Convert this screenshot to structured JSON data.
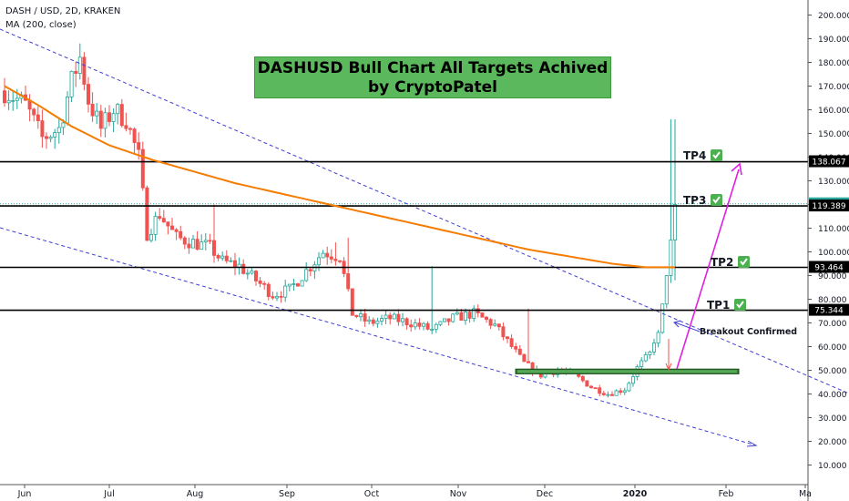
{
  "header": {
    "symbol": "DASH / USD, 2D, KRAKEN",
    "indicator": "MA (200, close)"
  },
  "banner": {
    "line1": "DASHUSD Bull Chart All Targets Achived",
    "line2": "by CryptoPatel"
  },
  "colors": {
    "up": "#26a69a",
    "down": "#ef5350",
    "ma": "#f57c00",
    "channel": "#3f3fd0",
    "arrow": "#e020e0",
    "support": "#2e7d32",
    "check": "#4caf50"
  },
  "chart_data": {
    "type": "candlestick",
    "y_axis": {
      "ticks": [
        "200.000",
        "190.000",
        "180.000",
        "170.000",
        "160.000",
        "150.000",
        "140.000",
        "130.000",
        "120.000",
        "110.000",
        "100.000",
        "90.000",
        "80.000",
        "70.000",
        "60.000",
        "50.000",
        "40.000",
        "30.000",
        "20.000",
        "10.000"
      ],
      "ylim": [
        4,
        206
      ]
    },
    "x_axis": {
      "ticks": [
        "Jun",
        "Jul",
        "Aug",
        "Sep",
        "Oct",
        "Nov",
        "Dec",
        "2020",
        "Feb",
        "Ma"
      ]
    },
    "price_badges": [
      {
        "value": 138.067,
        "label": "138.067",
        "color": "#000000"
      },
      {
        "value": 120.3,
        "label": "120.300",
        "color": "#26a69a"
      },
      {
        "value": 119.389,
        "label": "119.389",
        "color": "#000000"
      },
      {
        "value": 93.464,
        "label": "93.464",
        "color": "#000000"
      },
      {
        "value": 75.344,
        "label": "75.344",
        "color": "#000000"
      }
    ],
    "targets": [
      {
        "label": "TP4 ✅",
        "price": 138.067
      },
      {
        "label": "TP3 ✅",
        "price": 119.389
      },
      {
        "label": "TP2 ✅",
        "price": 93.464
      },
      {
        "label": "TP1 ✅",
        "price": 75.344
      }
    ],
    "annotations": [
      {
        "text": "Breakout Confirmed",
        "price": 69
      }
    ],
    "support_zone": [
      48.5,
      50.5
    ],
    "anchors": [
      {
        "t": 0,
        "p": 168
      },
      {
        "t": 5,
        "p": 162
      },
      {
        "t": 9,
        "p": 148
      },
      {
        "t": 13,
        "p": 152
      },
      {
        "t": 16,
        "p": 172
      },
      {
        "t": 18,
        "p": 182
      },
      {
        "t": 20,
        "p": 164
      },
      {
        "t": 23,
        "p": 152
      },
      {
        "t": 26,
        "p": 160
      },
      {
        "t": 29,
        "p": 156
      },
      {
        "t": 32,
        "p": 140
      },
      {
        "t": 34,
        "p": 108
      },
      {
        "t": 37,
        "p": 116
      },
      {
        "t": 41,
        "p": 106
      },
      {
        "t": 45,
        "p": 104
      },
      {
        "t": 49,
        "p": 102
      },
      {
        "t": 52,
        "p": 96
      },
      {
        "t": 56,
        "p": 94
      },
      {
        "t": 60,
        "p": 88
      },
      {
        "t": 64,
        "p": 82
      },
      {
        "t": 68,
        "p": 84
      },
      {
        "t": 72,
        "p": 92
      },
      {
        "t": 76,
        "p": 100
      },
      {
        "t": 80,
        "p": 98
      },
      {
        "t": 83,
        "p": 74
      },
      {
        "t": 87,
        "p": 70
      },
      {
        "t": 92,
        "p": 72
      },
      {
        "t": 97,
        "p": 70
      },
      {
        "t": 102,
        "p": 67
      },
      {
        "t": 107,
        "p": 72
      },
      {
        "t": 112,
        "p": 74
      },
      {
        "t": 117,
        "p": 69
      },
      {
        "t": 121,
        "p": 60
      },
      {
        "t": 124,
        "p": 53
      },
      {
        "t": 128,
        "p": 48
      },
      {
        "t": 132,
        "p": 50
      },
      {
        "t": 136,
        "p": 48
      },
      {
        "t": 140,
        "p": 43
      },
      {
        "t": 144,
        "p": 40
      },
      {
        "t": 148,
        "p": 42
      },
      {
        "t": 151,
        "p": 51
      },
      {
        "t": 154,
        "p": 57
      },
      {
        "t": 156,
        "p": 66
      },
      {
        "t": 158,
        "p": 90
      },
      {
        "t": 160,
        "p": 120
      }
    ],
    "ma": [
      {
        "t": 0,
        "p": 170
      },
      {
        "t": 8,
        "p": 162
      },
      {
        "t": 16,
        "p": 153
      },
      {
        "t": 25,
        "p": 145
      },
      {
        "t": 35,
        "p": 139
      },
      {
        "t": 45,
        "p": 134
      },
      {
        "t": 55,
        "p": 129
      },
      {
        "t": 65,
        "p": 125
      },
      {
        "t": 75,
        "p": 121
      },
      {
        "t": 85,
        "p": 117
      },
      {
        "t": 95,
        "p": 113
      },
      {
        "t": 105,
        "p": 109
      },
      {
        "t": 115,
        "p": 105
      },
      {
        "t": 125,
        "p": 101
      },
      {
        "t": 135,
        "p": 98
      },
      {
        "t": 145,
        "p": 95
      },
      {
        "t": 153,
        "p": 93.5
      },
      {
        "t": 160,
        "p": 93.5
      }
    ]
  }
}
